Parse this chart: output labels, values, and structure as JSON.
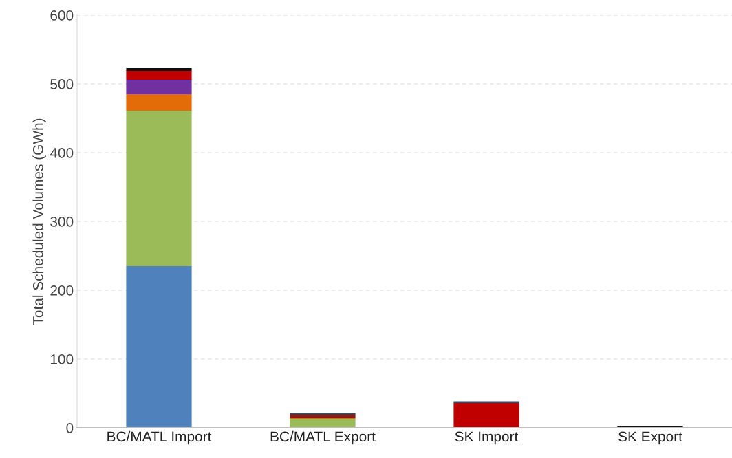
{
  "chart_data": {
    "type": "bar",
    "stacked": true,
    "ylabel": "Total Scheduled Volumes (GWh)",
    "categories": [
      "BC/MATL Import",
      "BC/MATL Export",
      "SK Import",
      "SK Export"
    ],
    "series": [
      {
        "color": "#4f81bd",
        "values": [
          235,
          0,
          0,
          0
        ]
      },
      {
        "color": "#9bbb59",
        "values": [
          226,
          13,
          0,
          0
        ]
      },
      {
        "color": "#e36c09",
        "values": [
          24,
          1,
          0,
          0
        ]
      },
      {
        "color": "#7030a0",
        "values": [
          21,
          0,
          0,
          0
        ]
      },
      {
        "color": "#c00000",
        "values": [
          13,
          1,
          36,
          0
        ]
      },
      {
        "color": "#7f2020",
        "values": [
          0,
          5,
          0,
          0
        ]
      },
      {
        "color": "#2e4e6e",
        "values": [
          0,
          2,
          2.5,
          0
        ]
      },
      {
        "color": "#111111",
        "values": [
          4,
          0,
          0,
          2
        ]
      }
    ],
    "ylim": [
      0,
      600
    ],
    "yticks": [
      0,
      100,
      200,
      300,
      400,
      500,
      600
    ],
    "grid": "y",
    "legend": false
  }
}
